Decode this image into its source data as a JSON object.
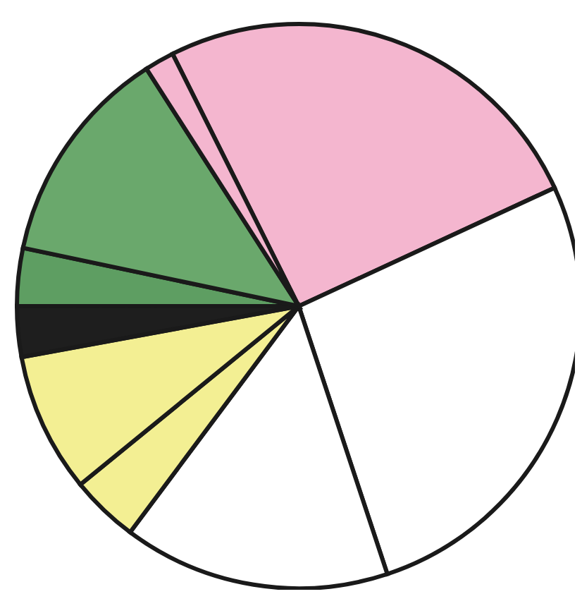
{
  "chart_data": {
    "type": "pie",
    "categories": [
      null,
      null,
      null,
      null,
      null,
      null,
      null,
      null,
      null
    ],
    "values": [
      25.5,
      26.8,
      15.3,
      3.9,
      8.0,
      2.9,
      3.3,
      12.6,
      1.7
    ],
    "colors": [
      "#f4b6cf",
      "#ffffff",
      "#ffffff",
      "#f3ef93",
      "#f3ef93",
      "#1e1e1e",
      "#5e9e62",
      "#6aa86c",
      "#f4b6cf"
    ]
  }
}
